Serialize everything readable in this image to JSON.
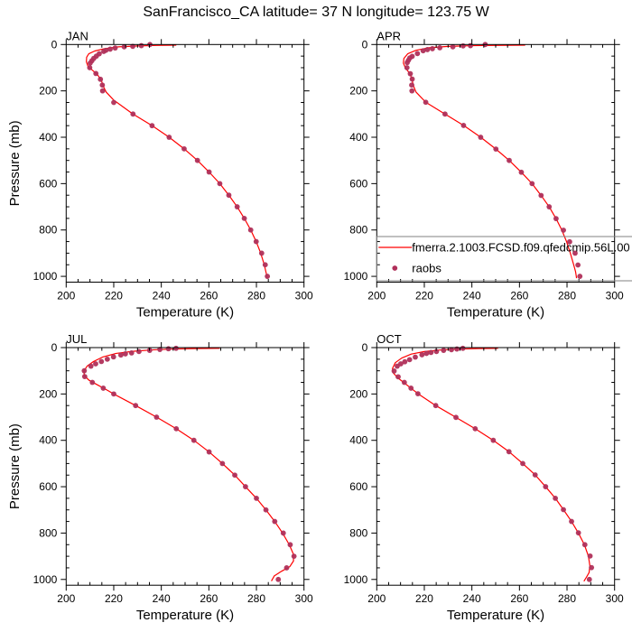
{
  "chart_data": {
    "type": "line",
    "title": "SanFrancisco_CA  latitude= 37 N longitude= 123.75 W",
    "colors": {
      "model_line": "#ff0000",
      "obs_marker": "#b0305a",
      "axis": "#000000",
      "legend_border": "#808080"
    },
    "legend": {
      "placement": "bottom-right of APR panel",
      "entries": [
        {
          "name": "fmerra.2.1003.FCSD.f09.qfedcmip.56L.00",
          "style": "line"
        },
        {
          "name": "raobs",
          "style": "marker"
        }
      ]
    },
    "panels": [
      {
        "label": "JAN",
        "xlabel": "Temperature (K)",
        "ylabel": "Pressure (mb)",
        "xlim": [
          200,
          300
        ],
        "ylim": [
          1025,
          0
        ],
        "xticks": [
          200,
          220,
          240,
          260,
          280,
          300
        ],
        "yticks": [
          0,
          200,
          400,
          600,
          800,
          1000
        ],
        "raobs": {
          "T": [
            235.2,
            231.6,
            228.0,
            224.4,
            220.6,
            218.5,
            216.7,
            215.8,
            213.9,
            212.7,
            211.6,
            210.8,
            210.1,
            209.9,
            212.5,
            214.4,
            215.2,
            215.3,
            220.0,
            228.1,
            236.1,
            243.3,
            249.6,
            255.2,
            260.1,
            264.6,
            268.4,
            271.9,
            274.9,
            277.6,
            279.9,
            282.2,
            283.7,
            284.6
          ],
          "P": [
            0,
            5,
            8,
            10,
            15,
            20,
            25,
            30,
            40,
            50,
            60,
            70,
            80,
            100,
            125,
            150,
            175,
            200,
            250,
            300,
            350,
            400,
            450,
            500,
            550,
            600,
            650,
            700,
            750,
            800,
            850,
            900,
            950,
            1000
          ]
        },
        "model": {
          "T": [
            246.3,
            238.0,
            230.0,
            222.0,
            216.0,
            212.0,
            209.5,
            208.6,
            208.5,
            209.2,
            211.5,
            213.5,
            214.8,
            215.6,
            216.8,
            220.0,
            228.1,
            236.1,
            243.3,
            249.6,
            255.2,
            260.1,
            264.6,
            268.4,
            271.9,
            274.9,
            277.6,
            279.9,
            281.8,
            283.3,
            284.2,
            284.6
          ],
          "P": [
            3,
            4,
            6,
            10,
            18,
            28,
            40,
            55,
            75,
            95,
            115,
            135,
            155,
            180,
            205,
            240,
            300,
            350,
            400,
            450,
            500,
            550,
            600,
            650,
            700,
            750,
            800,
            850,
            900,
            950,
            990,
            1010
          ]
        }
      },
      {
        "label": "APR",
        "xlabel": "Temperature (K)",
        "ylabel": "",
        "xlim": [
          200,
          300
        ],
        "ylim": [
          1025,
          0
        ],
        "xticks": [
          200,
          220,
          240,
          260,
          280,
          300
        ],
        "yticks": [
          0,
          200,
          400,
          600,
          800,
          1000
        ],
        "raobs": {
          "T": [
            245.6,
            239.4,
            236.3,
            232.0,
            226.5,
            223.4,
            221.3,
            219.5,
            217.1,
            214.9,
            213.9,
            213.3,
            212.8,
            212.7,
            214.1,
            214.9,
            214.7,
            214.8,
            220.6,
            228.7,
            236.5,
            243.7,
            250.1,
            255.7,
            260.8,
            265.3,
            269.1,
            272.5,
            275.4,
            278.5,
            281.1,
            283.4,
            284.6,
            285.4
          ],
          "P": [
            0,
            5,
            6,
            10,
            14,
            18,
            22,
            27,
            39,
            51,
            58,
            68,
            78,
            100,
            126,
            149,
            175,
            200,
            249,
            300,
            349,
            400,
            451,
            500,
            551,
            600,
            651,
            700,
            751,
            801,
            851,
            900,
            951,
            1000
          ]
        },
        "model": {
          "T": [
            262.4,
            250.0,
            240.0,
            230.0,
            222.0,
            216.5,
            213.0,
            211.4,
            211.2,
            212.0,
            213.5,
            214.5,
            215.0,
            215.5,
            216.5,
            220.6,
            228.7,
            236.5,
            243.7,
            250.1,
            255.7,
            260.8,
            265.3,
            269.1,
            272.5,
            275.4,
            277.8,
            279.8,
            281.4,
            282.8,
            283.6,
            283.9,
            284.0
          ],
          "P": [
            3,
            4,
            5,
            8,
            14,
            25,
            40,
            60,
            80,
            100,
            120,
            140,
            160,
            180,
            205,
            249,
            300,
            349,
            400,
            451,
            500,
            551,
            600,
            651,
            700,
            751,
            800,
            850,
            900,
            950,
            980,
            1000,
            1008
          ]
        }
      },
      {
        "label": "JUL",
        "xlabel": "Temperature (K)",
        "ylabel": "Pressure (mb)",
        "xlim": [
          200,
          300
        ],
        "ylim": [
          1025,
          0
        ],
        "xticks": [
          200,
          220,
          240,
          260,
          280,
          300
        ],
        "yticks": [
          0,
          200,
          400,
          600,
          800,
          1000
        ],
        "raobs": {
          "T": [
            246.2,
            243.0,
            239.4,
            235.1,
            230.6,
            227.5,
            224.9,
            223.0,
            219.9,
            217.3,
            214.8,
            212.4,
            210.4,
            207.6,
            207.8,
            211.0,
            215.6,
            220.0,
            229.2,
            238.0,
            246.3,
            253.7,
            260.1,
            265.7,
            270.9,
            275.4,
            280.0,
            284.0,
            287.7,
            291.3,
            294.2,
            295.8,
            292.7,
            289.2
          ],
          "P": [
            3,
            5,
            8,
            12,
            17,
            23,
            27,
            32,
            40,
            50,
            60,
            70,
            80,
            100,
            125,
            150,
            175,
            200,
            250,
            300,
            350,
            400,
            450,
            500,
            550,
            600,
            650,
            700,
            750,
            800,
            850,
            900,
            950,
            1000
          ]
        },
        "model": {
          "T": [
            264.6,
            255.0,
            245.0,
            236.0,
            228.0,
            221.0,
            215.5,
            211.5,
            208.8,
            207.5,
            207.6,
            209.5,
            213.0,
            217.5,
            220.0,
            229.2,
            238.0,
            246.3,
            253.7,
            260.1,
            265.7,
            270.9,
            275.4,
            280.0,
            284.0,
            287.7,
            291.0,
            293.8,
            295.5,
            295.6,
            294.0,
            290.5,
            287.5,
            286.3
          ],
          "P": [
            3,
            4,
            6,
            10,
            16,
            25,
            40,
            60,
            80,
            100,
            120,
            140,
            160,
            185,
            200,
            250,
            300,
            350,
            400,
            450,
            500,
            550,
            600,
            650,
            700,
            750,
            800,
            850,
            890,
            920,
            945,
            965,
            985,
            1007
          ]
        }
      },
      {
        "label": "OCT",
        "xlabel": "Temperature (K)",
        "ylabel": "",
        "xlim": [
          200,
          300
        ],
        "ylim": [
          1025,
          0
        ],
        "xticks": [
          200,
          220,
          240,
          260,
          280,
          300
        ],
        "yticks": [
          0,
          200,
          400,
          600,
          800,
          1000
        ],
        "raobs": {
          "T": [
            236.2,
            233.7,
            231.4,
            228.1,
            225.1,
            222.8,
            220.9,
            219.0,
            216.2,
            213.8,
            211.8,
            210.1,
            208.6,
            207.3,
            209.0,
            211.6,
            214.4,
            217.3,
            224.8,
            233.3,
            241.4,
            249.0,
            255.6,
            261.4,
            266.6,
            271.0,
            275.1,
            278.5,
            281.9,
            284.8,
            287.5,
            289.7,
            290.3,
            289.4
          ],
          "P": [
            3,
            6,
            9,
            12,
            17,
            21,
            25,
            31,
            41,
            52,
            61,
            70,
            80,
            101,
            126,
            150,
            175,
            199,
            250,
            301,
            350,
            400,
            449,
            500,
            549,
            600,
            650,
            699,
            750,
            799,
            850,
            899,
            949,
            1000
          ]
        },
        "model": {
          "T": [
            251.0,
            243.0,
            235.0,
            227.0,
            220.0,
            214.5,
            210.5,
            207.8,
            206.6,
            207.0,
            208.8,
            211.5,
            214.5,
            217.5,
            224.8,
            233.3,
            241.4,
            249.0,
            255.6,
            261.4,
            266.6,
            271.0,
            275.1,
            278.5,
            281.9,
            284.8,
            287.3,
            289.0,
            289.6,
            289.3,
            288.2,
            287.1
          ],
          "P": [
            3,
            4,
            6,
            10,
            17,
            28,
            45,
            65,
            90,
            110,
            130,
            152,
            176,
            200,
            250,
            301,
            350,
            400,
            449,
            500,
            549,
            600,
            650,
            699,
            750,
            800,
            850,
            900,
            940,
            970,
            990,
            1008
          ]
        }
      }
    ]
  }
}
